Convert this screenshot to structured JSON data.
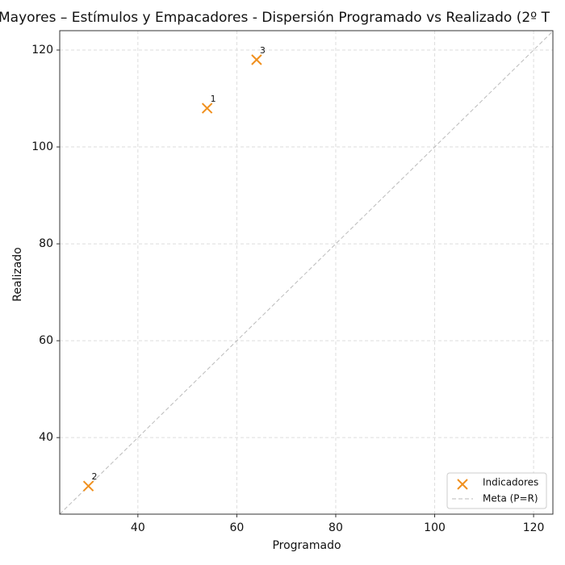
{
  "chart_data": {
    "type": "scatter",
    "title": "Mayores – Estímulos y Empacadores - Dispersión Programado vs Realizado (2º T",
    "x_label": "Programado",
    "y_label": "Realizado",
    "series": [
      {
        "name": "Indicadores",
        "color": "#f0901e",
        "marker": "x",
        "x": [
          54,
          30,
          64
        ],
        "values": [
          108,
          30,
          118
        ],
        "labels": [
          "1",
          "2",
          "3"
        ]
      }
    ],
    "reference_line": {
      "name": "Meta (P=R)",
      "color": "#bbbbbb"
    },
    "xlim": [
      24.2,
      123.9
    ],
    "ylim": [
      24.2,
      124
    ],
    "xticks": [
      40,
      60,
      80,
      100,
      120
    ],
    "yticks": [
      40,
      60,
      80,
      100,
      120
    ],
    "grid": true,
    "legend": "lower right"
  }
}
